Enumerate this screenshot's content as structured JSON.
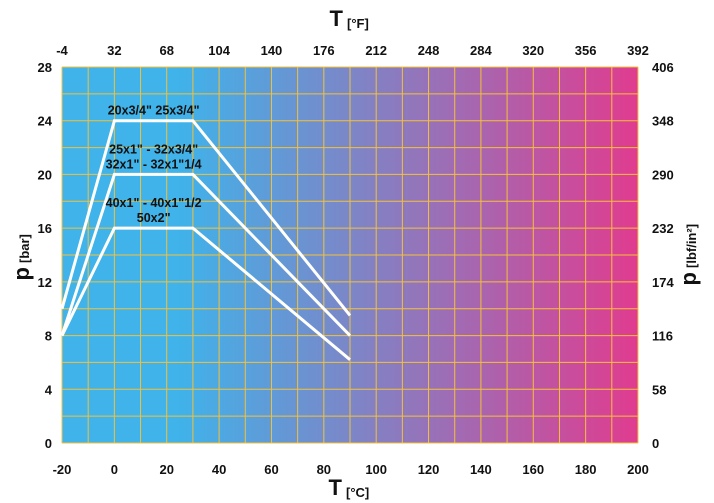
{
  "chart_data": {
    "type": "line",
    "x_axis": {
      "symbol": "T",
      "unit": "[°C]",
      "range": [
        -20,
        200
      ],
      "ticks": [
        "-20",
        "0",
        "20",
        "40",
        "60",
        "80",
        "100",
        "120",
        "140",
        "160",
        "180",
        "200"
      ]
    },
    "x2_axis": {
      "symbol": "T",
      "unit": "[°F]",
      "ticks": [
        "-4",
        "32",
        "68",
        "104",
        "140",
        "176",
        "212",
        "248",
        "284",
        "320",
        "356",
        "392"
      ]
    },
    "y_axis": {
      "symbol": "p",
      "unit": "[bar]",
      "range": [
        0,
        28
      ],
      "ticks": [
        "0",
        "4",
        "8",
        "12",
        "16",
        "20",
        "24",
        "28"
      ]
    },
    "y2_axis": {
      "symbol": "p",
      "unit": "[lbf/in²]",
      "ticks": [
        "0",
        "58",
        "116",
        "174",
        "232",
        "290",
        "348",
        "406"
      ]
    },
    "grid": true,
    "background_gradient": [
      "#3fb3ea",
      "#e03c8f"
    ],
    "line_color": "#ffffff",
    "series": [
      {
        "labels": [
          "20x3/4\"  25x3/4\""
        ],
        "x": [
          -20,
          0,
          30,
          90
        ],
        "y": [
          10,
          24,
          24,
          9.5
        ]
      },
      {
        "labels": [
          "25x1\" - 32x3/4\"",
          "32x1\" - 32x1\"1/4"
        ],
        "x": [
          -20,
          0,
          30,
          90
        ],
        "y": [
          8,
          20,
          20,
          8
        ]
      },
      {
        "labels": [
          "40x1\" - 40x1\"1/2",
          "50x2\""
        ],
        "x": [
          -20,
          0,
          30,
          90
        ],
        "y": [
          8,
          16,
          16,
          6.2
        ]
      }
    ]
  }
}
